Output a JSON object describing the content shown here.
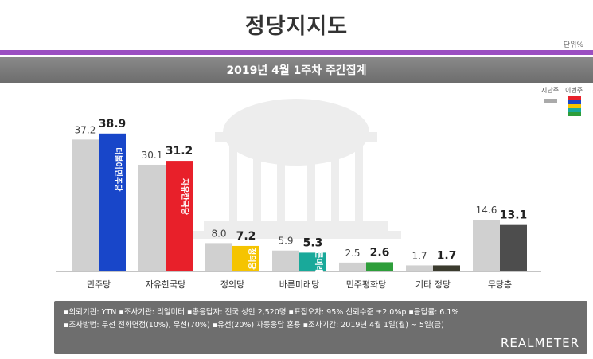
{
  "header": {
    "title": "정당지지도",
    "unit": "단위%",
    "subtitle": "2019년 4월 1주차 주간집계"
  },
  "legend": {
    "previous_label": "지난주",
    "current_label": "이번주"
  },
  "colors": {
    "previous": "#d0d0d0",
    "header_accent": "#9b4fc1",
    "bars": [
      "#1846c9",
      "#e8202a",
      "#f5c400",
      "#19a99a",
      "#2e9e3a",
      "#3b3b2e",
      "#4d4d4d"
    ]
  },
  "chart_data": {
    "type": "bar",
    "categories": [
      "민주당",
      "자유한국당",
      "정의당",
      "바른미래당",
      "민주평화당",
      "기타 정당",
      "무당층"
    ],
    "series": [
      {
        "name": "지난주",
        "values": [
          37.2,
          30.1,
          8.0,
          5.9,
          2.5,
          1.7,
          14.6
        ]
      },
      {
        "name": "이번주",
        "values": [
          38.9,
          31.2,
          7.2,
          5.3,
          2.6,
          1.7,
          13.1
        ]
      }
    ],
    "ylim": [
      0,
      42
    ],
    "grid": false,
    "legend": "top-right",
    "bar_logos": [
      "더불어민주당",
      "자유한국당",
      "정의당",
      "바른미래당",
      "",
      "",
      ""
    ]
  },
  "footer": {
    "line1": "▪의뢰기관: YTN ▪조사기관: 리얼미터 ▪총응답자: 전국 성인 2,520명 ▪표집오차: 95% 신뢰수준 ±2.0%p ▪응답률: 6.1%",
    "line2": "▪조사방법: 무선 전화면접(10%), 무선(70%) ▪유선(20%) 자동응답 혼용 ▪조사기간: 2019년 4월 1일(월) ~ 5일(금)",
    "brand": "REALMETER"
  }
}
